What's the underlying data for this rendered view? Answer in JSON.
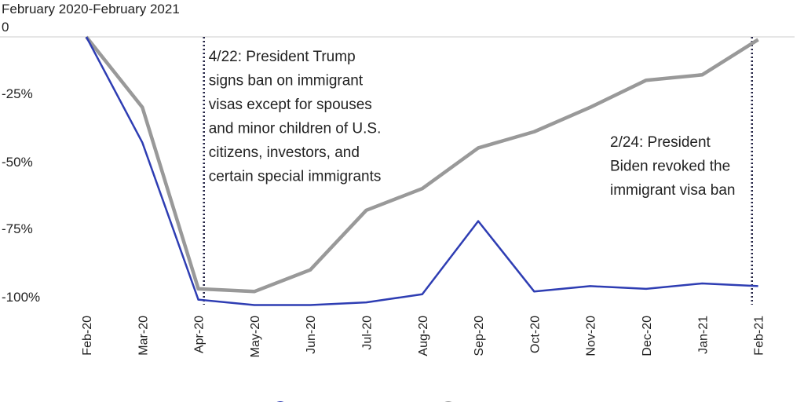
{
  "chart_data": {
    "type": "line",
    "subtitle": "February 2020-February 2021",
    "categories": [
      "Feb-20",
      "Mar-20",
      "Apr-20",
      "May-20",
      "Jun-20",
      "Jul-20",
      "Aug-20",
      "Sep-20",
      "Oct-20",
      "Nov-20",
      "Dec-20",
      "Jan-21",
      "Feb-21"
    ],
    "y_ticks": [
      "0",
      "-25%",
      "-50%",
      "-75%",
      "-100%"
    ],
    "ylim": [
      -100,
      0
    ],
    "grid": "zero line only",
    "series": [
      {
        "color": "#999999",
        "values": [
          0,
          -26,
          -93,
          -94,
          -86,
          -64,
          -56,
          -41,
          -35,
          -26,
          -16,
          -14,
          -1
        ]
      },
      {
        "color": "#2e3db3",
        "values": [
          0,
          -39,
          -97,
          -99,
          -99,
          -98,
          -95,
          -68,
          -94,
          -92,
          -93,
          -91,
          -92
        ]
      }
    ],
    "annotations": [
      {
        "at": "Apr-20",
        "offset_months": 0.7,
        "lines": [
          "4/22: President Trump",
          "signs ban on immigrant",
          "visas except for spouses",
          "and minor children of U.S.",
          "citizens, investors, and",
          "certain special immigrants"
        ]
      },
      {
        "at": "Feb-21",
        "offset_months": -0.1,
        "lines": [
          "2/24: President",
          "Biden revoked the",
          "immigrant visa ban"
        ]
      }
    ],
    "legend": "bottom"
  }
}
